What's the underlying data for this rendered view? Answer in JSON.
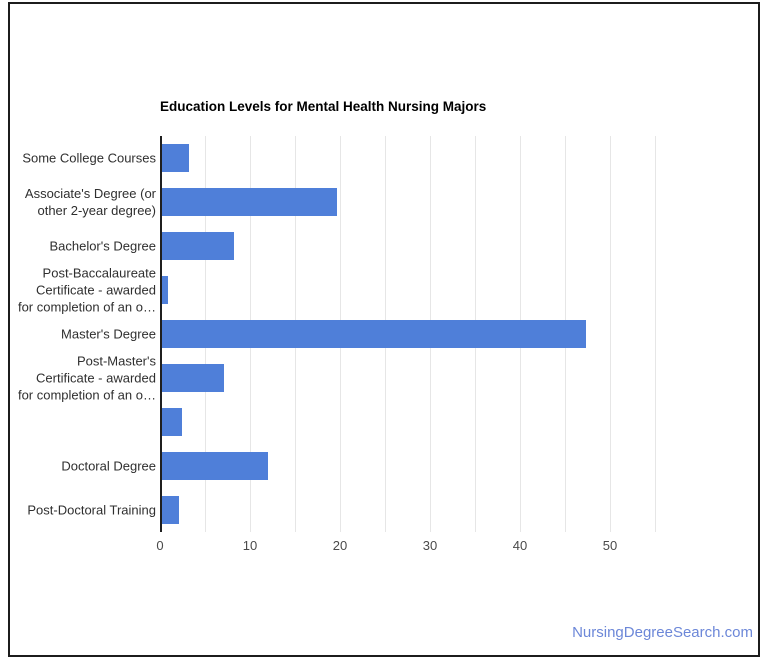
{
  "footer": {
    "link_label": "NursingDegreeSearch.com"
  },
  "colors": {
    "bar": "#4f7fd9",
    "gridline": "#e6e6e6",
    "axis": "#1f1f1f",
    "title": "#000000",
    "category_label": "#2f2f2f",
    "tick_label": "#4a4a4a",
    "link": "#6c87d8",
    "border": "#1c1c1c"
  },
  "chart_data": {
    "type": "bar",
    "orientation": "horizontal",
    "title": "Education Levels for Mental Health Nursing Majors",
    "categories": [
      [
        "Some College Courses"
      ],
      [
        "Associate's Degree (or",
        "other 2-year degree)"
      ],
      [
        "Bachelor's Degree"
      ],
      [
        "Post-Baccalaureate",
        "Certificate - awarded",
        "for completion of an o…"
      ],
      [
        "Master's Degree"
      ],
      [
        "Post-Master's",
        "Certificate - awarded",
        "for completion of an o…"
      ],
      [
        ""
      ],
      [
        "Doctoral Degree"
      ],
      [
        "Post-Doctoral Training"
      ]
    ],
    "values": [
      3,
      19.5,
      8,
      0.7,
      47.2,
      6.9,
      2.3,
      11.8,
      1.9
    ],
    "x_ticks": [
      0,
      10,
      20,
      30,
      40,
      50
    ],
    "xlim": [
      0,
      55
    ],
    "gridline_step": 5,
    "grid": true,
    "legend": "none",
    "xlabel": "",
    "ylabel": ""
  }
}
